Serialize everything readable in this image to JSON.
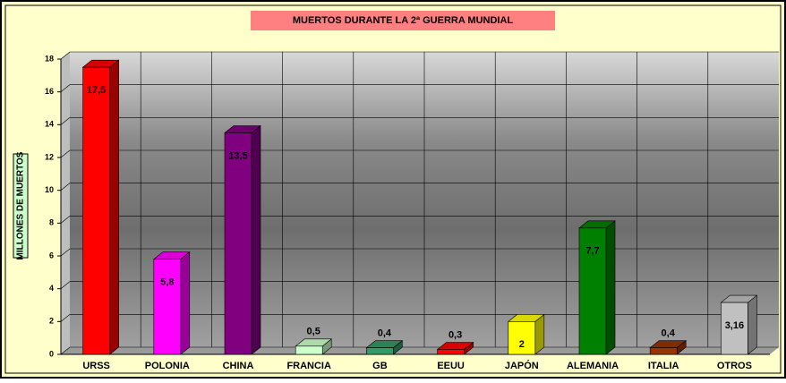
{
  "chart_data": {
    "type": "bar3d",
    "title": "MUERTOS DURANTE LA 2ª GUERRA MUNDIAL",
    "y_label": "MILLONES DE MUERTOS",
    "categories": [
      "URSS",
      "POLONIA",
      "CHINA",
      "FRANCIA",
      "GB",
      "EEUU",
      "JAPÓN",
      "ALEMANIA",
      "ITALIA",
      "OTROS"
    ],
    "values": [
      17.5,
      5.8,
      13.5,
      0.5,
      0.4,
      0.3,
      2,
      7.7,
      0.4,
      3.16
    ],
    "value_labels": [
      "17,5",
      "5,8",
      "13,5",
      "0,5",
      "0,4",
      "0,3",
      "2",
      "7,7",
      "0,4",
      "3,16"
    ],
    "colors": [
      "#ff0000",
      "#ff00ff",
      "#800080",
      "#ccffcc",
      "#339966",
      "#ff0000",
      "#ffff00",
      "#008000",
      "#993300",
      "#c0c0c0"
    ],
    "ylim": [
      0,
      18
    ],
    "yticks": [
      0,
      2,
      4,
      6,
      8,
      10,
      12,
      14,
      16,
      18
    ],
    "grid": true
  }
}
